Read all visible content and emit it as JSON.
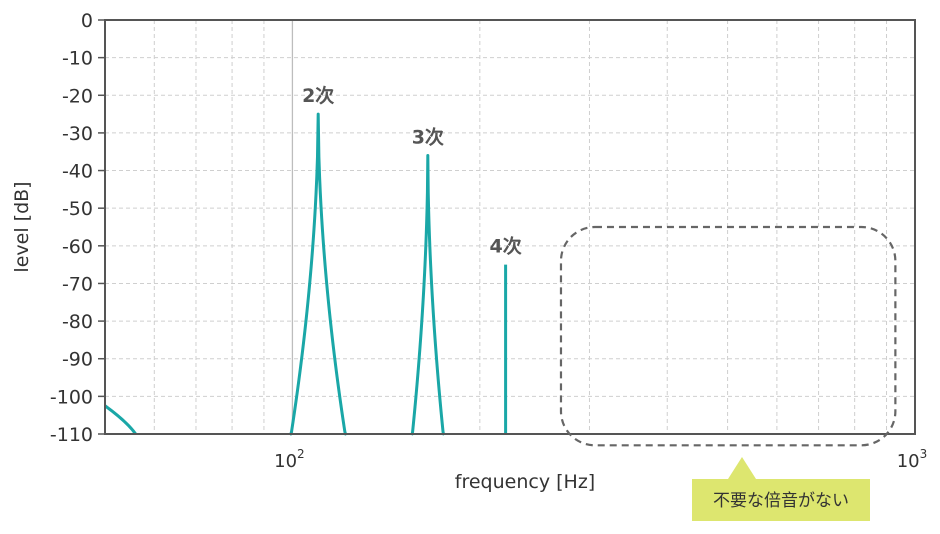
{
  "chart_data": {
    "type": "line",
    "xlabel": "frequency [Hz]",
    "ylabel": "level [dB]",
    "x_scale": "log",
    "xlim": [
      50,
      1000
    ],
    "ylim": [
      -110,
      0
    ],
    "y_ticks": [
      "0",
      "-10",
      "-20",
      "-30",
      "-40",
      "-50",
      "-60",
      "-70",
      "-80",
      "-90",
      "-100",
      "-110"
    ],
    "x_ticks": [
      {
        "value": 100,
        "base": "10",
        "exp": "2"
      },
      {
        "value": 1000,
        "base": "10",
        "exp": "3"
      }
    ],
    "grid": true,
    "line_color": "#1aa7a7",
    "series": [
      {
        "peaks": [
          {
            "x": 110,
            "level": -25,
            "label": "2次"
          },
          {
            "x": 165,
            "level": -36,
            "label": "3次"
          },
          {
            "x": 220,
            "level": -65,
            "label": "4次"
          }
        ],
        "low_end": [
          {
            "x": 50,
            "level": -102.5
          },
          {
            "x": 56,
            "level": -110
          }
        ]
      }
    ],
    "annotations": {
      "highlight_region": {
        "x_from": 270,
        "x_to": 930,
        "y_from": -55,
        "y_to": -113
      },
      "callout_text": "不要な倍音がない",
      "callout_color": "#dde66f"
    }
  }
}
